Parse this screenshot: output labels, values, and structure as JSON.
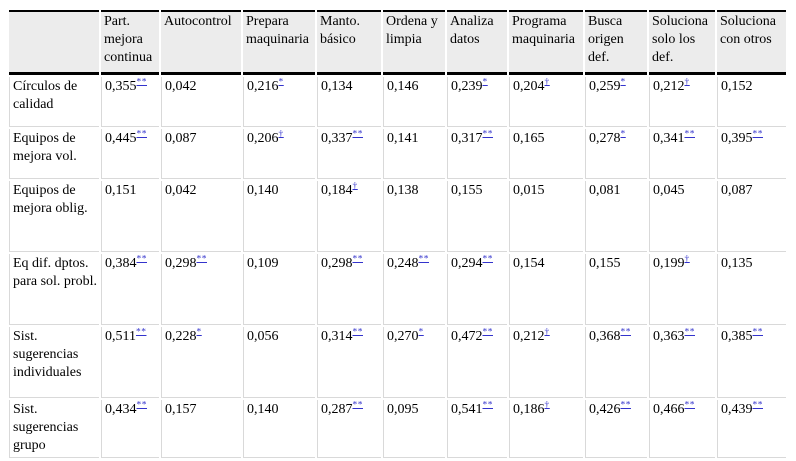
{
  "colors": {
    "header_bg": "#ececec",
    "heavy_rule": "#000000",
    "grid_line": "#d9d9d9",
    "significance_link": "#3333cc",
    "text": "#000000"
  },
  "table": {
    "corner_label": "",
    "columns": [
      "Part. mejora continua",
      "Autocontrol",
      "Prepara maquinaria",
      "Manto. básico",
      "Ordena y limpia",
      "Analiza datos",
      "Programa maquinaria",
      "Busca origen def.",
      "Soluciona solo los def.",
      "Soluciona con otros"
    ],
    "rows": [
      {
        "label": "Círculos de calidad",
        "cells": [
          {
            "value": "0,355",
            "sig": "**"
          },
          {
            "value": "0,042",
            "sig": ""
          },
          {
            "value": "0,216",
            "sig": "*"
          },
          {
            "value": "0,134",
            "sig": ""
          },
          {
            "value": "0,146",
            "sig": ""
          },
          {
            "value": "0,239",
            "sig": "*"
          },
          {
            "value": "0,204",
            "sig": "†"
          },
          {
            "value": "0,259",
            "sig": "*"
          },
          {
            "value": "0,212",
            "sig": "†"
          },
          {
            "value": "0,152",
            "sig": ""
          }
        ]
      },
      {
        "label": "Equipos de mejora vol.",
        "cells": [
          {
            "value": "0,445",
            "sig": "**"
          },
          {
            "value": "0,087",
            "sig": ""
          },
          {
            "value": "0,206",
            "sig": "†"
          },
          {
            "value": "0,337",
            "sig": "**"
          },
          {
            "value": "0,141",
            "sig": ""
          },
          {
            "value": "0,317",
            "sig": "**"
          },
          {
            "value": "0,165",
            "sig": ""
          },
          {
            "value": "0,278",
            "sig": "*"
          },
          {
            "value": "0,341",
            "sig": "**"
          },
          {
            "value": "0,395",
            "sig": "**"
          }
        ]
      },
      {
        "label": "Equipos de mejora oblig.",
        "cells": [
          {
            "value": "0,151",
            "sig": ""
          },
          {
            "value": "0,042",
            "sig": ""
          },
          {
            "value": "0,140",
            "sig": ""
          },
          {
            "value": "0,184",
            "sig": "†"
          },
          {
            "value": "0,138",
            "sig": ""
          },
          {
            "value": "0,155",
            "sig": ""
          },
          {
            "value": "0,015",
            "sig": ""
          },
          {
            "value": "0,081",
            "sig": ""
          },
          {
            "value": "0,045",
            "sig": ""
          },
          {
            "value": "0,087",
            "sig": ""
          }
        ]
      },
      {
        "label": "Eq dif. dptos. para sol. probl.",
        "cells": [
          {
            "value": "0,384",
            "sig": "**"
          },
          {
            "value": "0,298",
            "sig": "**"
          },
          {
            "value": "0,109",
            "sig": ""
          },
          {
            "value": "0,298",
            "sig": "**"
          },
          {
            "value": "0,248",
            "sig": "**"
          },
          {
            "value": "0,294",
            "sig": "**"
          },
          {
            "value": "0,154",
            "sig": ""
          },
          {
            "value": "0,155",
            "sig": ""
          },
          {
            "value": "0,199",
            "sig": "†"
          },
          {
            "value": "0,135",
            "sig": ""
          }
        ]
      },
      {
        "label": "Sist. sugerencias individuales",
        "cells": [
          {
            "value": "0,511",
            "sig": "**"
          },
          {
            "value": "0,228",
            "sig": "*"
          },
          {
            "value": "0,056",
            "sig": ""
          },
          {
            "value": "0,314",
            "sig": "**"
          },
          {
            "value": "0,270",
            "sig": "*"
          },
          {
            "value": "0,472",
            "sig": "**"
          },
          {
            "value": "0,212",
            "sig": "†"
          },
          {
            "value": "0,368",
            "sig": "**"
          },
          {
            "value": "0,363",
            "sig": "**"
          },
          {
            "value": "0,385",
            "sig": "**"
          }
        ]
      },
      {
        "label": "Sist. sugerencias grupo",
        "cells": [
          {
            "value": "0,434",
            "sig": "**"
          },
          {
            "value": "0,157",
            "sig": ""
          },
          {
            "value": "0,140",
            "sig": ""
          },
          {
            "value": "0,287",
            "sig": "**"
          },
          {
            "value": "0,095",
            "sig": ""
          },
          {
            "value": "0,541",
            "sig": "**"
          },
          {
            "value": "0,186",
            "sig": "†"
          },
          {
            "value": "0,426",
            "sig": "**"
          },
          {
            "value": "0,466",
            "sig": "**"
          },
          {
            "value": "0,439",
            "sig": "**"
          }
        ]
      }
    ]
  }
}
